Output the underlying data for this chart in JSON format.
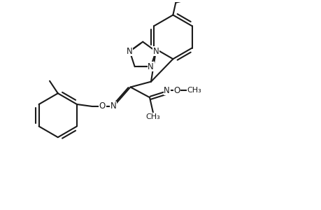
{
  "bg_color": "#ffffff",
  "line_color": "#1a1a1a",
  "line_width": 1.5,
  "font_size": 8.5,
  "figsize": [
    4.6,
    3.0
  ],
  "dpi": 100,
  "xlim": [
    0,
    46
  ],
  "ylim": [
    0,
    30
  ]
}
